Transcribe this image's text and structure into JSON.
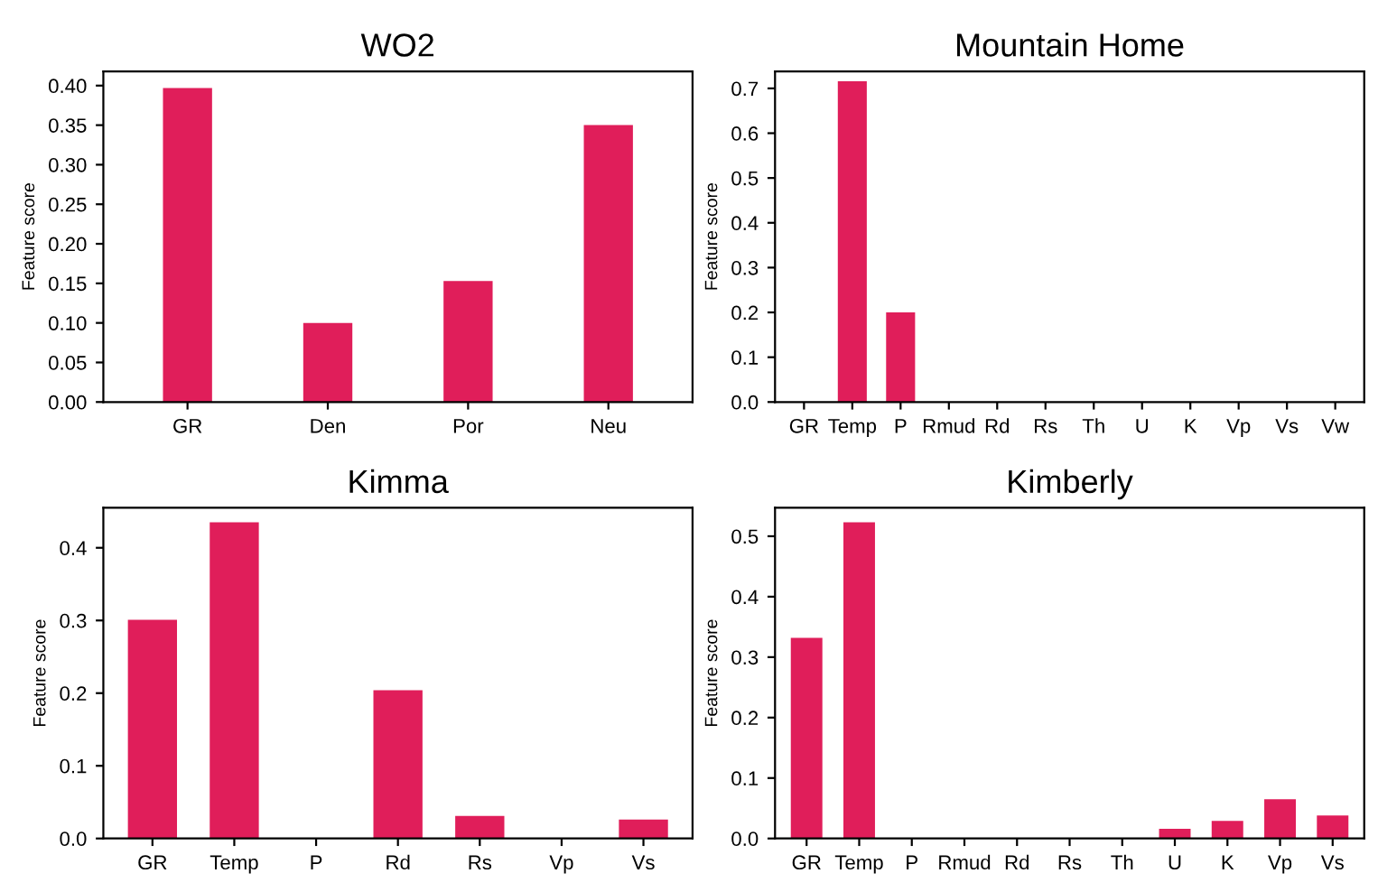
{
  "chart_data": [
    {
      "type": "bar",
      "title": "WO2",
      "ylabel": "Feature score",
      "categories": [
        "GR",
        "Den",
        "Por",
        "Neu"
      ],
      "values": [
        0.397,
        0.1,
        0.153,
        0.35
      ],
      "color": "#e01e5a",
      "ylim": [
        0,
        0.418
      ],
      "yticks": [
        {
          "value": 0,
          "label": "0.00"
        },
        0.05,
        {
          "value": 0.1,
          "label": "0.10"
        },
        0.15,
        {
          "value": 0.2,
          "label": "0.20"
        },
        0.25,
        {
          "value": 0.3,
          "label": "0.30"
        },
        0.35,
        {
          "value": 0.4,
          "label": "0.40"
        }
      ]
    },
    {
      "type": "bar",
      "title": "Mountain Home",
      "ylabel": "Feature score",
      "categories": [
        "GR",
        "Temp",
        "P",
        "Rmud",
        "Rd",
        "Rs",
        "Th",
        "U",
        "K",
        "Vp",
        "Vs",
        "Vw"
      ],
      "values": [
        0,
        0.716,
        0.2,
        0,
        0,
        0,
        0,
        0,
        0,
        0,
        0,
        0
      ],
      "color": "#e01e5a",
      "ylim": [
        0,
        0.738
      ],
      "yticks": [
        {
          "value": 0,
          "label": "0.0"
        },
        0.1,
        0.2,
        0.3,
        0.4,
        0.5,
        0.6,
        0.7
      ]
    },
    {
      "type": "bar",
      "title": "Kimma",
      "ylabel": "Feature score",
      "categories": [
        "GR",
        "Temp",
        "P",
        "Rd",
        "Rs",
        "Vp",
        "Vs"
      ],
      "values": [
        0.301,
        0.435,
        0,
        0.204,
        0.031,
        0,
        0.026
      ],
      "color": "#e01e5a",
      "ylim": [
        0,
        0.455
      ],
      "yticks": [
        {
          "value": 0,
          "label": "0.0"
        },
        0.1,
        0.2,
        0.3,
        0.4
      ]
    },
    {
      "type": "bar",
      "title": "Kimberly",
      "ylabel": "Feature score",
      "categories": [
        "GR",
        "Temp",
        "P",
        "Rmud",
        "Rd",
        "Rs",
        "Th",
        "U",
        "K",
        "Vp",
        "Vs"
      ],
      "values": [
        0.332,
        0.523,
        0,
        0,
        0,
        0,
        0,
        0.016,
        0.029,
        0.065,
        0.038
      ],
      "color": "#e01e5a",
      "ylim": [
        0,
        0.547
      ],
      "yticks": [
        {
          "value": 0,
          "label": "0.0"
        },
        0.1,
        0.2,
        0.3,
        0.4,
        0.5
      ]
    }
  ]
}
